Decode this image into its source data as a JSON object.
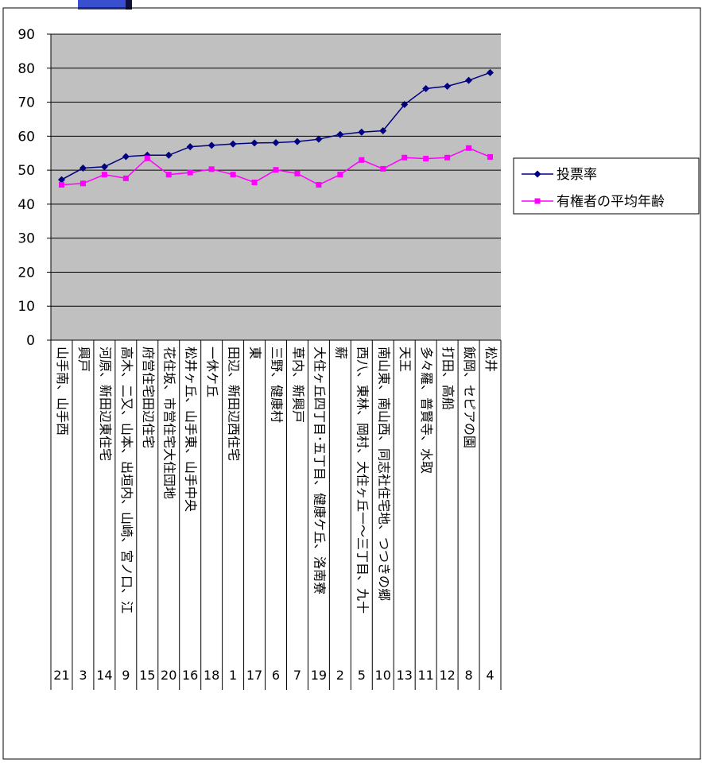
{
  "chart_data": {
    "type": "line",
    "ylim": [
      0,
      90
    ],
    "yticks": [
      0,
      10,
      20,
      30,
      40,
      50,
      60,
      70,
      80,
      90
    ],
    "grid": true,
    "legend_position": "right",
    "categories": [
      "山手南、山手西",
      "興戸",
      "河原、新田辺東住宅",
      "高木、二又、山本、出垣内、山崎、宮ノ口、江",
      "府営住宅田辺住宅",
      "花住坂、市営住宅大住団地",
      "松井ヶ丘、山手東、山手中央",
      "一休ケ丘",
      "田辺、新田辺西住宅",
      "東",
      "三野、健康村",
      "草内、新興戸",
      "大住ヶ丘四丁目･五丁目、健康ケ丘、洛南寮",
      "薪",
      "西八、東林、岡村、大住ヶ丘一～三丁目、九十",
      "南山東、南山西、同志社住宅地、つつきの郷",
      "天王",
      "多々羅、普賢寺、水取",
      "打田、高船",
      "飯岡、セピアの園",
      "松井"
    ],
    "codes": [
      "21",
      "3",
      "14",
      "9",
      "15",
      "20",
      "16",
      "18",
      "1",
      "17",
      "6",
      "7",
      "19",
      "2",
      "5",
      "10",
      "13",
      "11",
      "12",
      "8",
      "4"
    ],
    "series": [
      {
        "name": "投票率",
        "color": "#000080",
        "marker": "diamond",
        "values": [
          47.2,
          50.6,
          51.0,
          54.0,
          54.4,
          54.4,
          56.9,
          57.3,
          57.7,
          58.0,
          58.1,
          58.4,
          59.1,
          60.5,
          61.2,
          61.6,
          69.3,
          74.0,
          74.7,
          76.4,
          78.7
        ]
      },
      {
        "name": "有権者の平均年齢",
        "color": "#ff00ff",
        "marker": "square",
        "values": [
          45.7,
          46.1,
          48.7,
          47.6,
          53.5,
          48.7,
          49.3,
          50.3,
          48.7,
          46.4,
          50.1,
          49.0,
          45.7,
          48.7,
          53.0,
          50.4,
          53.7,
          53.4,
          53.7,
          56.5,
          53.9
        ]
      }
    ],
    "plot_background": "#c0c0c0",
    "grid_color": "#000000"
  }
}
